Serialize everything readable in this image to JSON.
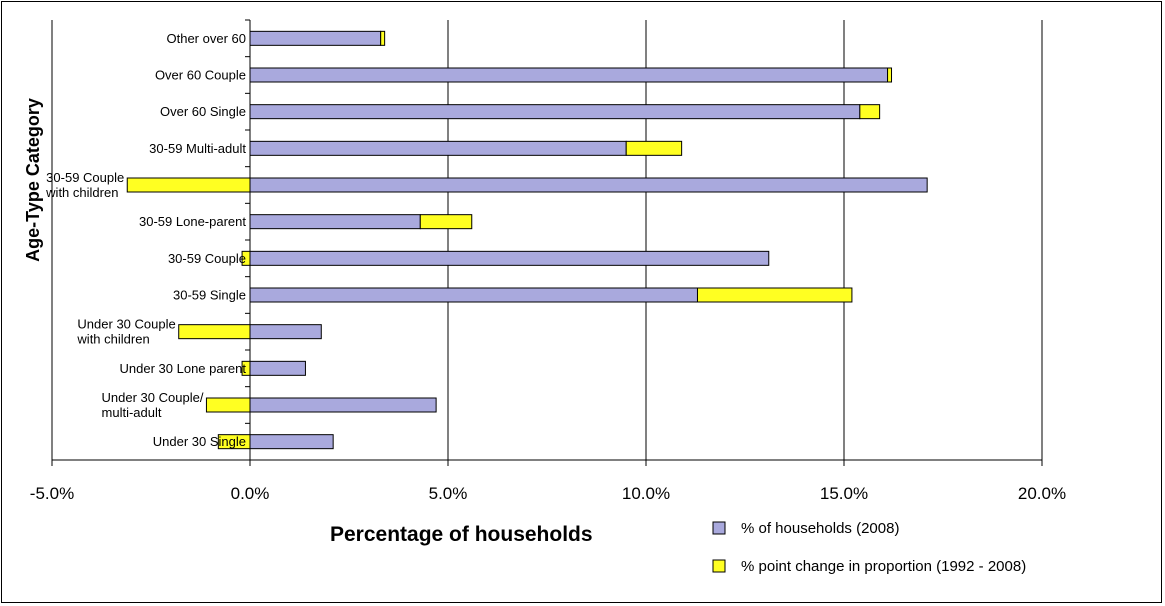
{
  "chart_data": {
    "type": "bar",
    "orientation": "horizontal",
    "stacked": true,
    "title": "",
    "xlabel": "Percentage of households",
    "ylabel": "Age-Type Category",
    "xlim": [
      -5.0,
      20.0
    ],
    "x_ticks": [
      -5.0,
      0.0,
      5.0,
      10.0,
      15.0,
      20.0
    ],
    "x_tick_labels": [
      "-5.0%",
      "0.0%",
      "5.0%",
      "10.0%",
      "15.0%",
      "20.0%"
    ],
    "grid": "vertical",
    "legend_position": "bottom-right",
    "categories": [
      "Other over 60",
      "Over 60 Couple",
      "Over 60 Single",
      "30-59 Multi-adult",
      "30-59 Couple with children",
      "30-59 Lone-parent",
      "30-59 Couple",
      "30-59 Single",
      "Under 30 Couple with children",
      "Under 30 Lone parent",
      "Under 30 Couple/ multi-adult",
      "Under 30 Single"
    ],
    "category_label_lines": [
      [
        "Other over 60"
      ],
      [
        "Over 60 Couple"
      ],
      [
        "Over 60 Single"
      ],
      [
        "30-59 Multi-adult"
      ],
      [
        "30-59 Couple",
        "with children"
      ],
      [
        "30-59 Lone-parent"
      ],
      [
        "30-59 Couple"
      ],
      [
        "30-59 Single"
      ],
      [
        "Under 30 Couple",
        "with children"
      ],
      [
        "Under 30 Lone parent"
      ],
      [
        "Under 30 Couple/",
        "multi-adult"
      ],
      [
        "Under 30 Single"
      ]
    ],
    "series": [
      {
        "name": "% of households (2008)",
        "color": "#a9a9dd",
        "values": [
          3.3,
          16.1,
          15.4,
          9.5,
          17.1,
          4.3,
          13.1,
          11.3,
          1.8,
          1.4,
          4.7,
          2.1
        ]
      },
      {
        "name": "% point change in proportion (1992 - 2008)",
        "color": "#ffff22",
        "values": [
          0.1,
          0.1,
          0.5,
          1.4,
          -3.1,
          1.3,
          -0.2,
          3.9,
          -1.8,
          -0.2,
          -1.1,
          -0.8
        ]
      }
    ]
  }
}
